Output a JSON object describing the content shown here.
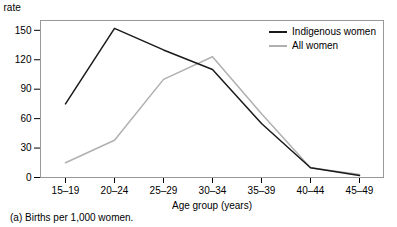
{
  "chart_data": {
    "type": "line",
    "x_label": "Age group (years)",
    "y_label": "rate",
    "categories": [
      "15–19",
      "20–24",
      "25–29",
      "30–34",
      "35–39",
      "40–44",
      "45–49"
    ],
    "series": [
      {
        "name": "Indigenous women",
        "color": "#1a1a1a",
        "values": [
          75,
          152,
          130,
          110,
          55,
          10,
          2
        ]
      },
      {
        "name": "All women",
        "color": "#b0b0b0",
        "values": [
          15,
          38,
          100,
          123,
          65,
          10,
          3
        ]
      }
    ],
    "ylim": [
      0,
      160
    ],
    "yticks": [
      0,
      30,
      60,
      90,
      120,
      150
    ],
    "grid": false,
    "legend": "upper right",
    "annotations": [
      "(a) Births per 1,000 women."
    ]
  }
}
